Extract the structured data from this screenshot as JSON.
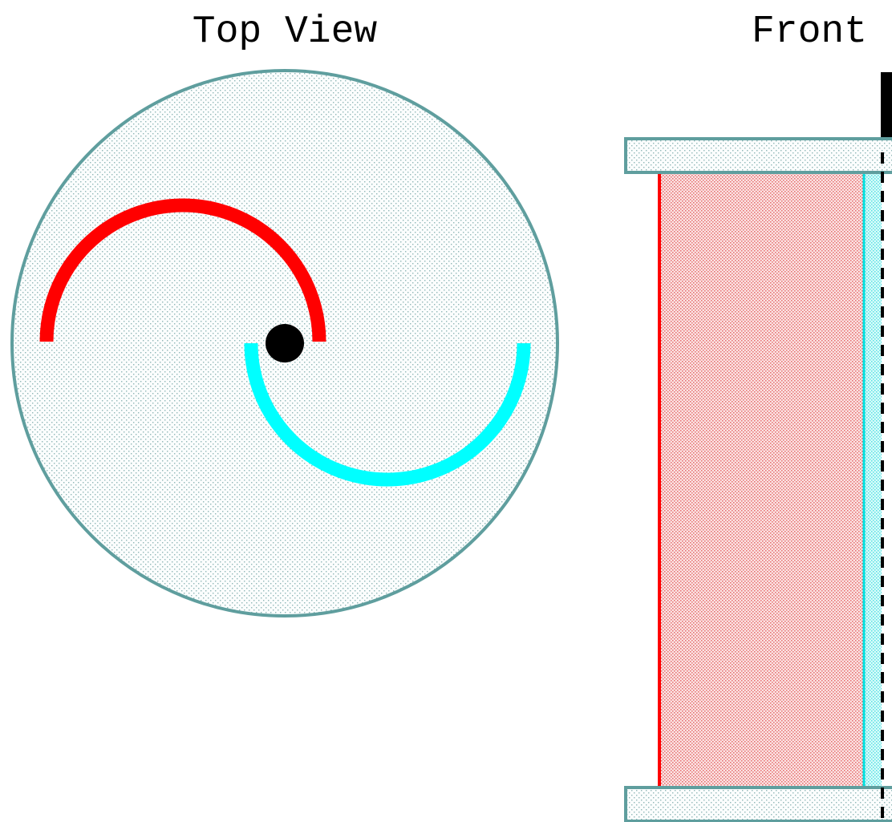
{
  "titles": {
    "top": "Top View",
    "front": "Front"
  }
}
